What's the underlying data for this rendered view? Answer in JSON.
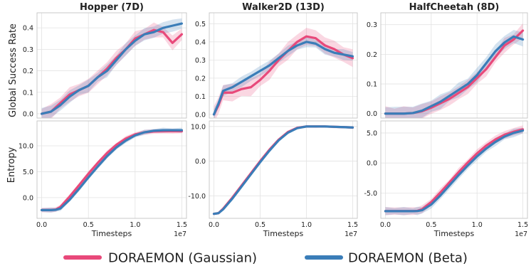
{
  "legend": [
    {
      "name": "DORAEMON (Gaussian)",
      "color": "#e8497a"
    },
    {
      "name": "DORAEMON (Beta)",
      "color": "#3a7db8"
    }
  ],
  "row_labels": [
    "Global Success Rate",
    "Entropy"
  ],
  "chart_data": [
    {
      "type": "line",
      "title": "Hopper (7D)",
      "ylabel": "Global Success Rate",
      "xlabel": "",
      "xlim": [
        -0.05,
        1.55
      ],
      "ylim": [
        -0.02,
        0.47
      ],
      "xticks": [
        0.0,
        0.5,
        1.0,
        1.5
      ],
      "xtick_labels": [
        "",
        "",
        "",
        ""
      ],
      "yticks": [
        0.0,
        0.1,
        0.2,
        0.3,
        0.4
      ],
      "ytick_labels": [
        "0.0",
        "0.1",
        "0.2",
        "0.3",
        "0.4"
      ],
      "x_exponent": "",
      "grid": true,
      "series": [
        {
          "name": "DORAEMON (Gaussian)",
          "color": "#e8497a",
          "x": [
            0.0,
            0.1,
            0.2,
            0.3,
            0.4,
            0.5,
            0.6,
            0.7,
            0.8,
            0.9,
            1.0,
            1.1,
            1.2,
            1.3,
            1.4,
            1.5
          ],
          "y": [
            0.0,
            0.01,
            0.05,
            0.09,
            0.11,
            0.13,
            0.17,
            0.21,
            0.26,
            0.3,
            0.35,
            0.37,
            0.39,
            0.38,
            0.33,
            0.37
          ],
          "band": 0.035
        },
        {
          "name": "DORAEMON (Beta)",
          "color": "#3a7db8",
          "x": [
            0.0,
            0.1,
            0.2,
            0.3,
            0.4,
            0.5,
            0.6,
            0.7,
            0.8,
            0.9,
            1.0,
            1.1,
            1.2,
            1.3,
            1.4,
            1.5
          ],
          "y": [
            0.0,
            0.01,
            0.04,
            0.08,
            0.11,
            0.13,
            0.17,
            0.2,
            0.25,
            0.3,
            0.34,
            0.37,
            0.38,
            0.4,
            0.41,
            0.42
          ],
          "band": 0.03
        }
      ]
    },
    {
      "type": "line",
      "title": "Walker2D (13D)",
      "ylabel": "",
      "xlabel": "",
      "xlim": [
        -0.05,
        1.55
      ],
      "ylim": [
        -0.02,
        0.56
      ],
      "xticks": [
        0.0,
        0.5,
        1.0,
        1.5
      ],
      "xtick_labels": [
        "",
        "",
        "",
        ""
      ],
      "yticks": [
        0.0,
        0.1,
        0.2,
        0.3,
        0.4,
        0.5
      ],
      "ytick_labels": [
        "0.0",
        "0.1",
        "0.2",
        "0.3",
        "0.4",
        "0.5"
      ],
      "x_exponent": "",
      "grid": true,
      "series": [
        {
          "name": "DORAEMON (Gaussian)",
          "color": "#e8497a",
          "x": [
            0.0,
            0.05,
            0.1,
            0.2,
            0.3,
            0.4,
            0.5,
            0.6,
            0.7,
            0.8,
            0.9,
            1.0,
            1.1,
            1.2,
            1.3,
            1.4,
            1.5
          ],
          "y": [
            0.0,
            0.05,
            0.12,
            0.12,
            0.14,
            0.15,
            0.19,
            0.24,
            0.3,
            0.35,
            0.4,
            0.43,
            0.42,
            0.38,
            0.36,
            0.33,
            0.31
          ],
          "band": 0.05
        },
        {
          "name": "DORAEMON (Beta)",
          "color": "#3a7db8",
          "x": [
            0.0,
            0.05,
            0.1,
            0.2,
            0.3,
            0.4,
            0.5,
            0.6,
            0.7,
            0.8,
            0.9,
            1.0,
            1.1,
            1.2,
            1.3,
            1.4,
            1.5
          ],
          "y": [
            0.0,
            0.06,
            0.13,
            0.15,
            0.18,
            0.21,
            0.24,
            0.27,
            0.31,
            0.35,
            0.38,
            0.4,
            0.39,
            0.36,
            0.34,
            0.33,
            0.32
          ],
          "band": 0.03
        }
      ]
    },
    {
      "type": "line",
      "title": "HalfCheetah (8D)",
      "ylabel": "",
      "xlabel": "",
      "xlim": [
        -0.05,
        1.55
      ],
      "ylim": [
        -0.015,
        0.34
      ],
      "xticks": [
        0.0,
        0.5,
        1.0,
        1.5
      ],
      "xtick_labels": [
        "",
        "",
        "",
        ""
      ],
      "yticks": [
        0.0,
        0.1,
        0.2,
        0.3
      ],
      "ytick_labels": [
        "0.0",
        "0.1",
        "0.2",
        "0.3"
      ],
      "x_exponent": "",
      "grid": true,
      "series": [
        {
          "name": "DORAEMON (Gaussian)",
          "color": "#e8497a",
          "x": [
            0.0,
            0.1,
            0.2,
            0.3,
            0.4,
            0.5,
            0.6,
            0.7,
            0.8,
            0.9,
            1.0,
            1.1,
            1.2,
            1.3,
            1.4,
            1.5
          ],
          "y": [
            0.0,
            0.0,
            0.0,
            0.002,
            0.008,
            0.02,
            0.035,
            0.05,
            0.07,
            0.09,
            0.12,
            0.15,
            0.19,
            0.23,
            0.25,
            0.28
          ],
          "band": 0.025
        },
        {
          "name": "DORAEMON (Beta)",
          "color": "#3a7db8",
          "x": [
            0.0,
            0.1,
            0.2,
            0.3,
            0.4,
            0.5,
            0.6,
            0.7,
            0.8,
            0.9,
            1.0,
            1.1,
            1.2,
            1.3,
            1.4,
            1.5
          ],
          "y": [
            0.0,
            0.0,
            0.0,
            0.002,
            0.01,
            0.025,
            0.04,
            0.06,
            0.08,
            0.1,
            0.13,
            0.17,
            0.21,
            0.24,
            0.26,
            0.25
          ],
          "band": 0.025
        }
      ]
    },
    {
      "type": "line",
      "title": "",
      "ylabel": "Entropy",
      "xlabel": "Timesteps",
      "xlim": [
        -0.05,
        1.55
      ],
      "ylim": [
        -4.0,
        14.8
      ],
      "xticks": [
        0.0,
        0.5,
        1.0,
        1.5
      ],
      "xtick_labels": [
        "0.0",
        "0.5",
        "1.0",
        "1.5"
      ],
      "yticks": [
        0.0,
        5.0,
        10.0
      ],
      "ytick_labels": [
        "0.0",
        "5.0",
        "10.0"
      ],
      "x_exponent": "1e7",
      "grid": true,
      "series": [
        {
          "name": "DORAEMON (Gaussian)",
          "color": "#e8497a",
          "x": [
            0.0,
            0.1,
            0.15,
            0.2,
            0.3,
            0.4,
            0.5,
            0.6,
            0.7,
            0.8,
            0.9,
            1.0,
            1.1,
            1.2,
            1.3,
            1.4,
            1.5
          ],
          "y": [
            -2.4,
            -2.4,
            -2.3,
            -1.8,
            0.2,
            2.4,
            4.6,
            6.7,
            8.6,
            10.2,
            11.4,
            12.2,
            12.6,
            12.75,
            12.8,
            12.8,
            12.8
          ],
          "band": 0.5
        },
        {
          "name": "DORAEMON (Beta)",
          "color": "#3a7db8",
          "x": [
            0.0,
            0.1,
            0.15,
            0.2,
            0.3,
            0.4,
            0.5,
            0.6,
            0.7,
            0.8,
            0.9,
            1.0,
            1.1,
            1.2,
            1.3,
            1.4,
            1.5
          ],
          "y": [
            -2.4,
            -2.4,
            -2.35,
            -2.1,
            -0.4,
            1.7,
            3.9,
            6.0,
            8.0,
            9.7,
            11.0,
            12.0,
            12.6,
            12.9,
            13.0,
            13.0,
            13.0
          ],
          "band": 0.5
        }
      ]
    },
    {
      "type": "line",
      "title": "",
      "ylabel": "",
      "xlabel": "Timesteps",
      "xlim": [
        -0.05,
        1.55
      ],
      "ylim": [
        -16.5,
        11.6
      ],
      "xticks": [
        0.0,
        0.5,
        1.0,
        1.5
      ],
      "xtick_labels": [
        "0.0",
        "0.5",
        "1.0",
        "1.5"
      ],
      "yticks": [
        -10.0,
        0.0,
        10.0
      ],
      "ytick_labels": [
        "-10.0",
        "0.0",
        "10.0"
      ],
      "x_exponent": "1e7",
      "grid": true,
      "series": [
        {
          "name": "DORAEMON (Gaussian)",
          "color": "#e8497a",
          "x": [
            0.0,
            0.05,
            0.1,
            0.2,
            0.3,
            0.4,
            0.5,
            0.6,
            0.7,
            0.8,
            0.9,
            1.0,
            1.1,
            1.2,
            1.3,
            1.4,
            1.5
          ],
          "y": [
            -15.2,
            -15.0,
            -13.7,
            -10.5,
            -7.0,
            -3.5,
            0.0,
            3.3,
            6.2,
            8.4,
            9.6,
            10.0,
            10.0,
            10.0,
            9.9,
            9.8,
            9.7
          ],
          "band": 0.4
        },
        {
          "name": "DORAEMON (Beta)",
          "color": "#3a7db8",
          "x": [
            0.0,
            0.05,
            0.1,
            0.2,
            0.3,
            0.4,
            0.5,
            0.6,
            0.7,
            0.8,
            0.9,
            1.0,
            1.1,
            1.2,
            1.3,
            1.4,
            1.5
          ],
          "y": [
            -15.2,
            -15.0,
            -13.9,
            -10.8,
            -7.3,
            -3.8,
            -0.3,
            3.0,
            6.0,
            8.2,
            9.5,
            10.0,
            10.0,
            10.0,
            9.9,
            9.8,
            9.7
          ],
          "band": 0.4
        }
      ]
    },
    {
      "type": "line",
      "title": "",
      "ylabel": "",
      "xlabel": "Timesteps",
      "xlim": [
        -0.05,
        1.55
      ],
      "ylim": [
        -9.2,
        7.0
      ],
      "xticks": [
        0.0,
        0.5,
        1.0,
        1.5
      ],
      "xtick_labels": [
        "0.0",
        "0.5",
        "1.0",
        "1.5"
      ],
      "yticks": [
        -5.0,
        0.0,
        5.0
      ],
      "ytick_labels": [
        "-5.0",
        "0.0",
        "5.0"
      ],
      "x_exponent": "1e7",
      "grid": true,
      "series": [
        {
          "name": "DORAEMON (Gaussian)",
          "color": "#e8497a",
          "x": [
            0.0,
            0.1,
            0.2,
            0.3,
            0.35,
            0.4,
            0.5,
            0.6,
            0.7,
            0.8,
            0.9,
            1.0,
            1.1,
            1.2,
            1.3,
            1.4,
            1.5
          ],
          "y": [
            -8.0,
            -8.0,
            -8.0,
            -8.0,
            -7.95,
            -7.7,
            -6.5,
            -4.9,
            -3.2,
            -1.5,
            0.1,
            1.6,
            2.9,
            3.9,
            4.7,
            5.2,
            5.6
          ],
          "band": 0.7
        },
        {
          "name": "DORAEMON (Beta)",
          "color": "#3a7db8",
          "x": [
            0.0,
            0.1,
            0.2,
            0.3,
            0.35,
            0.4,
            0.5,
            0.6,
            0.7,
            0.8,
            0.9,
            1.0,
            1.1,
            1.2,
            1.3,
            1.4,
            1.5
          ],
          "y": [
            -8.0,
            -8.0,
            -8.0,
            -8.0,
            -7.98,
            -7.85,
            -6.9,
            -5.4,
            -3.7,
            -2.0,
            -0.4,
            1.1,
            2.4,
            3.5,
            4.4,
            5.0,
            5.4
          ],
          "band": 0.7
        }
      ]
    }
  ]
}
